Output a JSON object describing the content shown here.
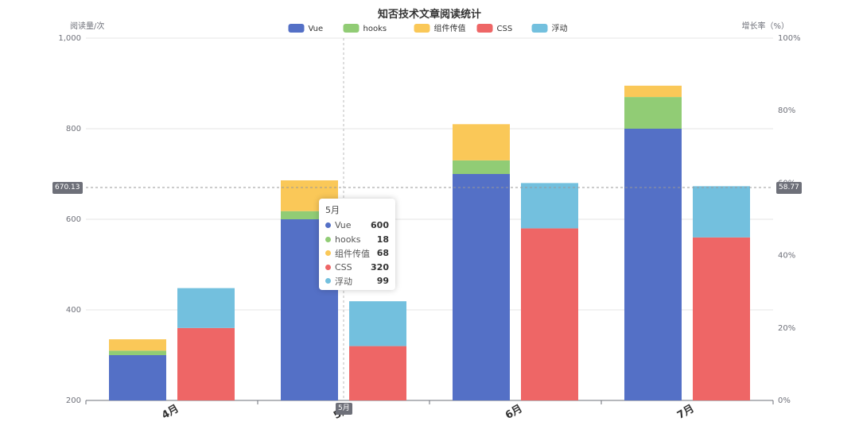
{
  "chart_data": {
    "type": "bar",
    "title": "知否技术文章阅读统计",
    "ylabel": "阅读量/次",
    "ylabel_right": "增长率（%）",
    "ylim": [
      200,
      1000
    ],
    "ylim_right": [
      0,
      100
    ],
    "yticks": [
      "200",
      "400",
      "600",
      "800",
      "1,000"
    ],
    "yticks_right": [
      "0%",
      "20%",
      "40%",
      "60%",
      "80%",
      "100%"
    ],
    "categories": [
      "4月",
      "5月",
      "6月",
      "7月"
    ],
    "legend_position": "top-center",
    "colors": {
      "Vue": "#5470c6",
      "hooks": "#91cc75",
      "组件传值": "#fac858",
      "CSS": "#ee6666",
      "浮动": "#73c0de"
    },
    "series": [
      {
        "name": "Vue",
        "stack": "A",
        "values": [
          300,
          600,
          700,
          800
        ]
      },
      {
        "name": "hooks",
        "stack": "A",
        "values": [
          10,
          18,
          30,
          70
        ]
      },
      {
        "name": "组件传值",
        "stack": "A",
        "values": [
          25,
          68,
          80,
          25
        ]
      },
      {
        "name": "CSS",
        "stack": "B",
        "values": [
          360,
          320,
          580,
          560
        ]
      },
      {
        "name": "浮动",
        "stack": "B",
        "values": [
          88,
          99,
          100,
          113
        ]
      }
    ],
    "axis_pointer": {
      "y_left": "670.13",
      "y_right": "58.77",
      "x": "5月"
    },
    "tooltip": {
      "title": "5月",
      "items": [
        {
          "name": "Vue",
          "value": "600",
          "color": "#5470c6"
        },
        {
          "name": "hooks",
          "value": "18",
          "color": "#91cc75"
        },
        {
          "name": "组件传值",
          "value": "68",
          "color": "#fac858"
        },
        {
          "name": "CSS",
          "value": "320",
          "color": "#ee6666"
        },
        {
          "name": "浮动",
          "value": "99",
          "color": "#73c0de"
        }
      ]
    }
  }
}
